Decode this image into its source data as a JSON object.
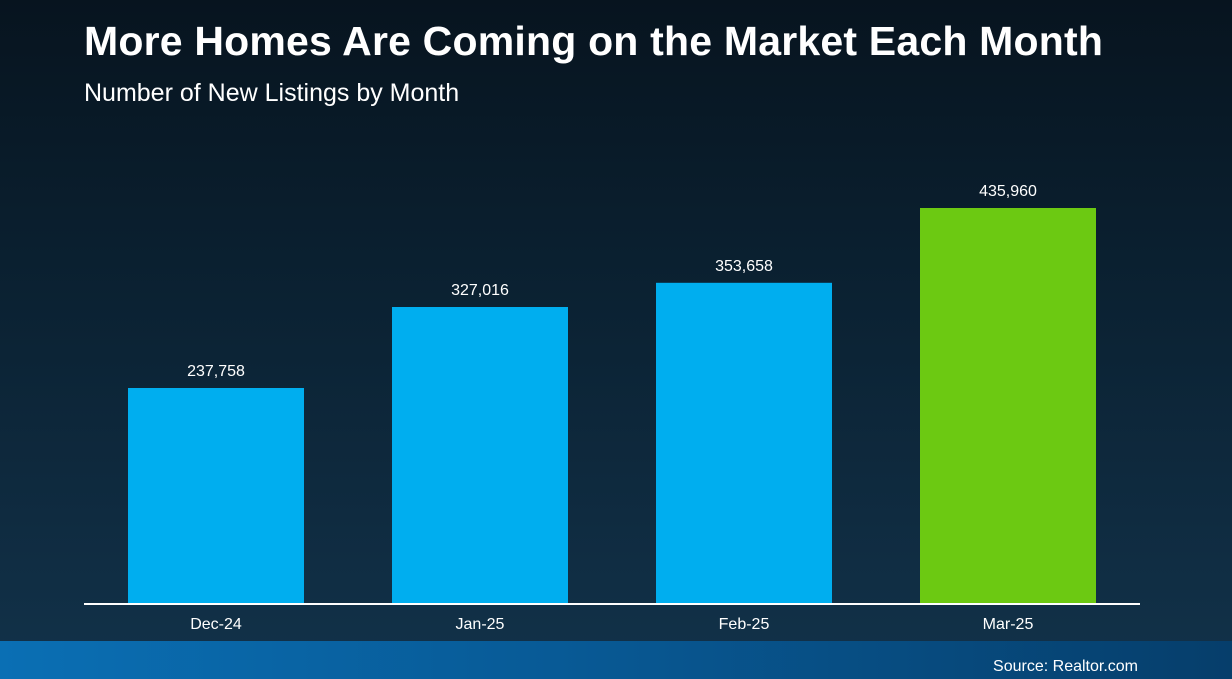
{
  "colors": {
    "bar": "#00aeef",
    "highlight_bar": "#6cc912",
    "axis": "#ffffff",
    "text": "#ffffff"
  },
  "footer": {
    "source": "Source: Realtor.com"
  },
  "chart_data": {
    "type": "bar",
    "title": "More Homes Are Coming on the Market Each Month",
    "subtitle": "Number of New Listings by Month",
    "categories": [
      "Dec-24",
      "Jan-25",
      "Feb-25",
      "Mar-25"
    ],
    "values": [
      237758,
      327016,
      353658,
      435960
    ],
    "data_labels": [
      "237,758",
      "327,016",
      "353,658",
      "435,960"
    ],
    "highlight_index": 3,
    "xlabel": "",
    "ylabel": "",
    "ylim": [
      0,
      480000
    ],
    "grid": false,
    "legend": "none"
  }
}
